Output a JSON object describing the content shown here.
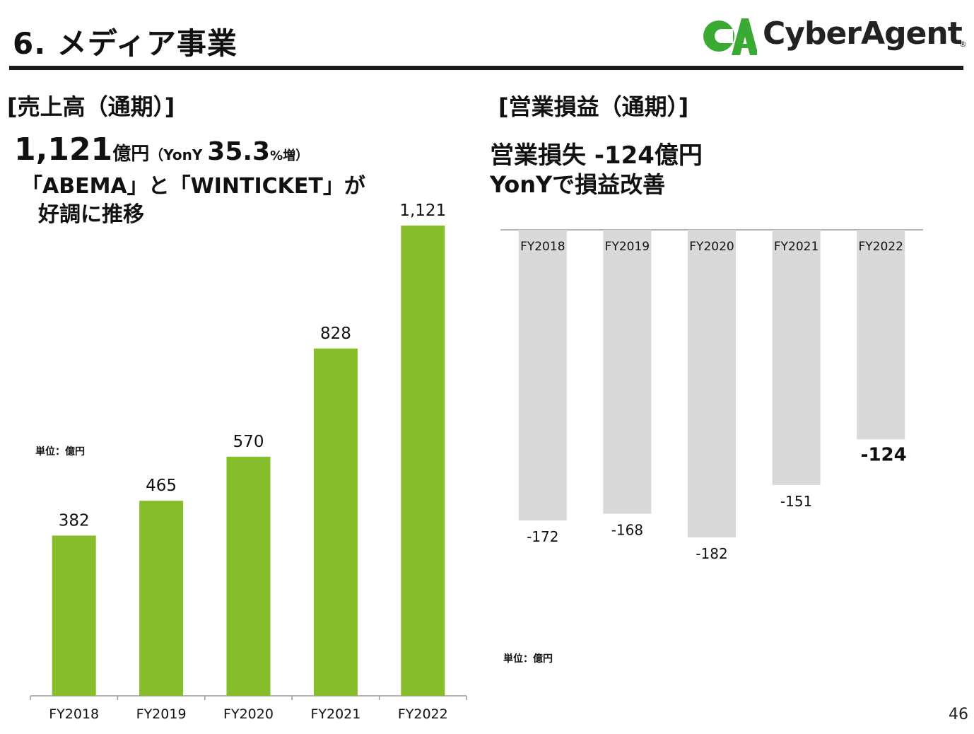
{
  "header": {
    "title": "6.  メディア事業",
    "logo_text": "CyberAgent",
    "logo_reg": "®",
    "logo_colors": {
      "green": "#3aaa35",
      "dark": "#222222"
    }
  },
  "left": {
    "section_title": "[売上高（通期）]",
    "headline_value": "1,121",
    "headline_unit": "億円",
    "headline_yony_prefix": "（YonY ",
    "headline_pct": "35.3",
    "headline_pct_suffix": "%増）",
    "note_line1": "「ABEMA」と「WINTICKET」が",
    "note_line2": "好調に推移",
    "unit_label": "単位：億円"
  },
  "right": {
    "section_title": "[営業損益（通期）]",
    "line1": "営業損失 -124億円",
    "line2": "YonYで損益改善",
    "unit_label": "単位：億円"
  },
  "page_number": "46",
  "chart_data": [
    {
      "type": "bar",
      "title": "",
      "categories": [
        "FY2018",
        "FY2019",
        "FY2020",
        "FY2021",
        "FY2022"
      ],
      "values": [
        382,
        465,
        570,
        828,
        1121
      ],
      "value_labels": [
        "382",
        "465",
        "570",
        "828",
        "1,121"
      ],
      "ylim": [
        0,
        1121
      ],
      "grid": false,
      "color": "#86bd2a"
    },
    {
      "type": "bar",
      "title": "",
      "categories": [
        "FY2018",
        "FY2019",
        "FY2020",
        "FY2021",
        "FY2022"
      ],
      "values": [
        -172,
        -168,
        -182,
        -151,
        -124
      ],
      "value_labels": [
        "-172",
        "-168",
        "-182",
        "-151",
        "-124"
      ],
      "ylim": [
        -182,
        0
      ],
      "grid": false,
      "color": "#d9d9d9",
      "highlight_last_label": true
    }
  ]
}
